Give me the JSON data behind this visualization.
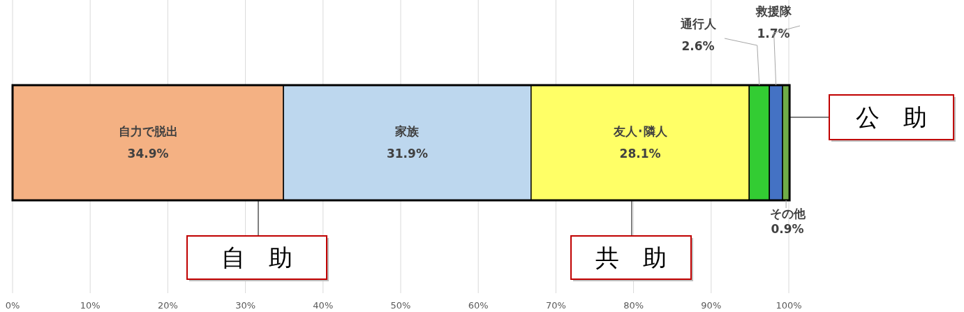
{
  "chart_data": {
    "type": "bar",
    "orientation": "horizontal",
    "stacked": true,
    "categories": [
      null
    ],
    "series": [
      {
        "name": "自力で脱出",
        "color": "#f4b183",
        "values": [
          34.9
        ],
        "value_labels": [
          "34.9%"
        ]
      },
      {
        "name": "家族",
        "color": "#bdd7ee",
        "values": [
          31.9
        ],
        "value_labels": [
          "31.9%"
        ]
      },
      {
        "name": "友人･隣人",
        "color": "#ffff66",
        "values": [
          28.1
        ],
        "value_labels": [
          "28.1%"
        ]
      },
      {
        "name": "通行人",
        "color": "#33cc33",
        "values": [
          2.6
        ],
        "value_labels": [
          "2.6%"
        ]
      },
      {
        "name": "救援隊",
        "color": "#4472c4",
        "values": [
          1.7
        ],
        "value_labels": [
          "1.7%"
        ]
      },
      {
        "name": "その他",
        "color": "#70ad47",
        "values": [
          0.9
        ],
        "value_labels": [
          "0.9%"
        ]
      }
    ],
    "xlim": [
      0,
      100
    ],
    "xticks": [
      {
        "value": 0,
        "label": "0%"
      },
      {
        "value": 10,
        "label": "10%"
      },
      {
        "value": 20,
        "label": "20%"
      },
      {
        "value": 30,
        "label": "30%"
      },
      {
        "value": 40,
        "label": "40%"
      },
      {
        "value": 50,
        "label": "50%"
      },
      {
        "value": 60,
        "label": "60%"
      },
      {
        "value": 70,
        "label": "70%"
      },
      {
        "value": 80,
        "label": "80%"
      },
      {
        "value": 90,
        "label": "90%"
      },
      {
        "value": 100,
        "label": "100%"
      }
    ],
    "grid": "x",
    "annotations": [
      "自　助",
      "共　助",
      "公　助"
    ]
  }
}
